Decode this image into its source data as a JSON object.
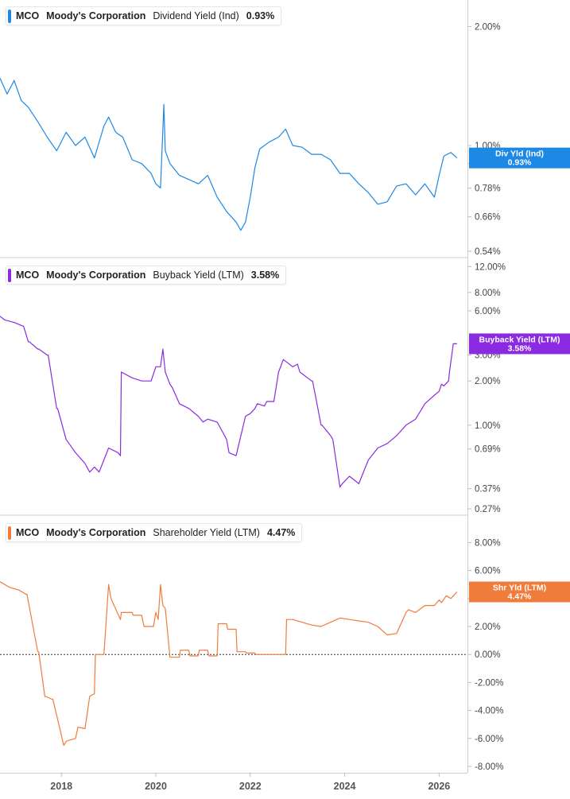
{
  "panels": [
    {
      "ticker": "MCO",
      "company": "Moody's Corporation",
      "metric": "Dividend Yield (Ind)",
      "value": "0.93%",
      "flag_label": "Div Yld (Ind)",
      "flag_value": "0.93%",
      "color": "#1e88e5"
    },
    {
      "ticker": "MCO",
      "company": "Moody's Corporation",
      "metric": "Buyback Yield (LTM)",
      "value": "3.58%",
      "flag_label": "Buyback Yield (LTM)",
      "flag_value": "3.58%",
      "color": "#8a2be2"
    },
    {
      "ticker": "MCO",
      "company": "Moody's Corporation",
      "metric": "Shareholder Yield (LTM)",
      "value": "4.47%",
      "flag_label": "Shr Yld (LTM)",
      "flag_value": "4.47%",
      "color": "#f07c3c"
    }
  ],
  "chart_data": [
    {
      "type": "line",
      "series": [
        {
          "name": "Dividend Yield (Ind)",
          "color": "#1e88e5",
          "x": [
            2016.7,
            2016.85,
            2017.0,
            2017.15,
            2017.3,
            2017.5,
            2017.7,
            2017.9,
            2018.1,
            2018.3,
            2018.5,
            2018.7,
            2018.9,
            2019.0,
            2019.15,
            2019.3,
            2019.5,
            2019.7,
            2019.9,
            2020.0,
            2020.1,
            2020.17,
            2020.2,
            2020.3,
            2020.5,
            2020.7,
            2020.9,
            2021.1,
            2021.3,
            2021.5,
            2021.7,
            2021.8,
            2021.9,
            2022.0,
            2022.1,
            2022.2,
            2022.4,
            2022.6,
            2022.75,
            2022.9,
            2023.1,
            2023.3,
            2023.5,
            2023.7,
            2023.9,
            2024.1,
            2024.3,
            2024.5,
            2024.7,
            2024.9,
            2025.1,
            2025.3,
            2025.5,
            2025.7,
            2025.9,
            2026.0,
            2026.1,
            2026.25,
            2026.38
          ],
          "y": [
            1.48,
            1.35,
            1.46,
            1.3,
            1.25,
            1.15,
            1.05,
            0.97,
            1.08,
            1.0,
            1.05,
            0.93,
            1.12,
            1.18,
            1.08,
            1.05,
            0.92,
            0.9,
            0.85,
            0.8,
            0.78,
            1.27,
            0.97,
            0.9,
            0.84,
            0.82,
            0.8,
            0.84,
            0.74,
            0.68,
            0.64,
            0.61,
            0.64,
            0.74,
            0.88,
            0.98,
            1.02,
            1.05,
            1.1,
            1.0,
            0.99,
            0.95,
            0.95,
            0.92,
            0.85,
            0.85,
            0.8,
            0.76,
            0.71,
            0.72,
            0.79,
            0.8,
            0.75,
            0.8,
            0.74,
            0.84,
            0.94,
            0.96,
            0.93
          ]
        }
      ],
      "ylim": [
        0.54,
        2.25
      ],
      "yscale": "log",
      "yticks": [
        "0.54%",
        "0.66%",
        "0.78%",
        "0.90%",
        "1.00%",
        "2.00%"
      ],
      "reference_line": null
    },
    {
      "type": "line",
      "series": [
        {
          "name": "Buyback Yield (LTM)",
          "color": "#8a2be2",
          "x": [
            2016.7,
            2016.8,
            2017.0,
            2017.2,
            2017.3,
            2017.32,
            2017.5,
            2017.52,
            2017.7,
            2017.72,
            2017.9,
            2017.92,
            2018.1,
            2018.3,
            2018.5,
            2018.6,
            2018.7,
            2018.8,
            2019.0,
            2019.2,
            2019.25,
            2019.27,
            2019.5,
            2019.7,
            2019.9,
            2020.0,
            2020.1,
            2020.15,
            2020.2,
            2020.3,
            2020.35,
            2020.5,
            2020.7,
            2020.9,
            2021.0,
            2021.1,
            2021.3,
            2021.5,
            2021.55,
            2021.7,
            2021.9,
            2022.0,
            2022.1,
            2022.15,
            2022.3,
            2022.35,
            2022.5,
            2022.6,
            2022.7,
            2022.9,
            2023.0,
            2023.05,
            2023.3,
            2023.32,
            2023.5,
            2023.52,
            2023.7,
            2023.75,
            2023.9,
            2023.95,
            2024.1,
            2024.3,
            2024.5,
            2024.7,
            2024.9,
            2025.1,
            2025.3,
            2025.5,
            2025.7,
            2025.9,
            2026.0,
            2026.05,
            2026.1,
            2026.2,
            2026.22,
            2026.3,
            2026.38
          ],
          "y": [
            5.5,
            5.2,
            5.0,
            4.7,
            3.7,
            3.7,
            3.3,
            3.3,
            3.0,
            3.0,
            1.3,
            1.3,
            0.8,
            0.65,
            0.55,
            0.48,
            0.52,
            0.48,
            0.7,
            0.65,
            0.62,
            2.3,
            2.1,
            2.0,
            2.0,
            2.5,
            2.5,
            3.3,
            2.3,
            1.9,
            1.8,
            1.4,
            1.3,
            1.15,
            1.05,
            1.1,
            1.05,
            0.8,
            0.65,
            0.62,
            1.15,
            1.2,
            1.3,
            1.4,
            1.35,
            1.45,
            1.45,
            2.3,
            2.8,
            2.5,
            2.6,
            2.3,
            2.0,
            2.0,
            1.0,
            1.0,
            0.85,
            0.8,
            0.38,
            0.4,
            0.45,
            0.4,
            0.58,
            0.7,
            0.75,
            0.85,
            1.0,
            1.1,
            1.4,
            1.6,
            1.7,
            1.9,
            1.85,
            2.0,
            2.3,
            3.58,
            3.58
          ]
        }
      ],
      "ylim": [
        0.27,
        12.5
      ],
      "yscale": "log",
      "yticks": [
        "0.27%",
        "0.37%",
        "0.69%",
        "1.00%",
        "2.00%",
        "3.00%",
        "6.00%",
        "8.00%",
        "12.00%"
      ],
      "reference_line": null
    },
    {
      "type": "line",
      "series": [
        {
          "name": "Shareholder Yield (LTM)",
          "color": "#f07c3c",
          "x": [
            2016.7,
            2016.9,
            2017.1,
            2017.25,
            2017.27,
            2017.5,
            2017.52,
            2017.65,
            2017.67,
            2017.8,
            2017.82,
            2018.05,
            2018.1,
            2018.3,
            2018.35,
            2018.5,
            2018.6,
            2018.7,
            2018.72,
            2018.85,
            2018.9,
            2019.0,
            2019.05,
            2019.25,
            2019.27,
            2019.5,
            2019.52,
            2019.7,
            2019.75,
            2019.95,
            2020.0,
            2020.05,
            2020.1,
            2020.15,
            2020.2,
            2020.3,
            2020.32,
            2020.5,
            2020.52,
            2020.7,
            2020.72,
            2020.9,
            2020.92,
            2021.1,
            2021.12,
            2021.3,
            2021.32,
            2021.5,
            2021.52,
            2021.7,
            2021.72,
            2021.9,
            2021.92,
            2022.1,
            2022.12,
            2022.3,
            2022.32,
            2022.5,
            2022.52,
            2022.75,
            2022.77,
            2022.9,
            2023.1,
            2023.3,
            2023.5,
            2023.7,
            2023.9,
            2024.1,
            2024.3,
            2024.5,
            2024.7,
            2024.9,
            2025.1,
            2025.3,
            2025.35,
            2025.5,
            2025.7,
            2025.9,
            2026.0,
            2026.05,
            2026.15,
            2026.25,
            2026.38
          ],
          "y": [
            5.2,
            4.8,
            4.6,
            4.3,
            4.3,
            0.2,
            0.2,
            -3.0,
            -3.0,
            -3.2,
            -3.2,
            -6.5,
            -6.2,
            -6.0,
            -5.2,
            -5.3,
            -3.0,
            -2.8,
            0.0,
            0.0,
            0.0,
            5.0,
            4.0,
            2.5,
            3.0,
            3.0,
            2.8,
            2.8,
            2.0,
            2.0,
            3.0,
            2.5,
            5.0,
            3.5,
            3.3,
            -0.2,
            -0.2,
            -0.2,
            0.3,
            0.3,
            -0.1,
            -0.1,
            0.3,
            0.3,
            -0.1,
            -0.1,
            2.2,
            2.2,
            1.8,
            1.8,
            0.2,
            0.2,
            0.1,
            0.1,
            0.0,
            0.0,
            0.0,
            0.0,
            0.0,
            0.0,
            2.5,
            2.5,
            2.3,
            2.1,
            2.0,
            2.3,
            2.6,
            2.5,
            2.4,
            2.3,
            2.0,
            1.4,
            1.5,
            3.0,
            3.2,
            3.0,
            3.5,
            3.5,
            3.9,
            3.7,
            4.2,
            4.0,
            4.47
          ]
        }
      ],
      "ylim": [
        -8,
        9.5
      ],
      "yscale": "linear",
      "yticks": [
        "-8.00%",
        "-6.00%",
        "-4.00%",
        "-2.00%",
        "0.00%",
        "2.00%",
        "4.00%",
        "6.00%",
        "8.00%"
      ],
      "reference_line": 0
    }
  ],
  "x_axis": {
    "xlim": [
      2016.7,
      2026.6
    ],
    "ticks": [
      {
        "value": 2018,
        "label": "2018"
      },
      {
        "value": 2020,
        "label": "2020"
      },
      {
        "value": 2022,
        "label": "2022"
      },
      {
        "value": 2024,
        "label": "2024"
      },
      {
        "value": 2026,
        "label": "2026"
      }
    ]
  }
}
